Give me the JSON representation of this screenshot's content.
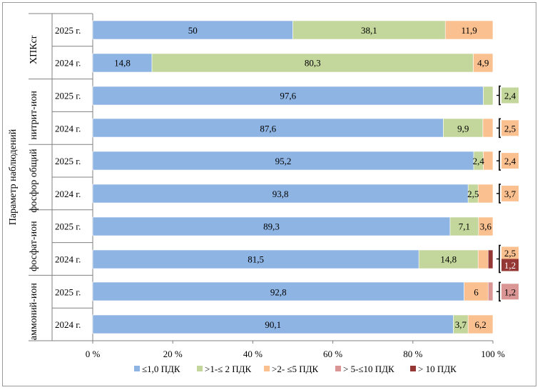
{
  "chart_data": {
    "type": "bar",
    "orientation": "horizontal",
    "stacked": true,
    "ylabel": "Параметр наблюдений",
    "xlim": [
      0,
      100
    ],
    "x_ticks": [
      "0 %",
      "20 %",
      "40 %",
      "60 %",
      "80 %",
      "100 %"
    ],
    "groups": [
      {
        "name": "ХПКcr",
        "rows": [
          {
            "year": "2025 г.",
            "values": [
              50,
              38.1,
              11.9,
              0,
              0
            ],
            "labels": [
              "50",
              "38,1",
              "11,9",
              "",
              ""
            ]
          },
          {
            "year": "2024 г.",
            "values": [
              14.8,
              80.3,
              4.9,
              0,
              0
            ],
            "labels": [
              "14,8",
              "80,3",
              "4,9",
              "",
              ""
            ]
          }
        ]
      },
      {
        "name": "нитрит-ион",
        "rows": [
          {
            "year": "2025 г.",
            "values": [
              97.6,
              2.4,
              0,
              0,
              0
            ],
            "labels": [
              "97,6",
              "",
              "",
              "",
              ""
            ],
            "callouts": [
              {
                "label": "2,4",
                "series": 1
              }
            ]
          },
          {
            "year": "2024 г.",
            "values": [
              87.6,
              9.9,
              2.5,
              0,
              0
            ],
            "labels": [
              "87,6",
              "9,9",
              "",
              "",
              ""
            ],
            "callouts": [
              {
                "label": "2,5",
                "series": 2
              }
            ]
          }
        ]
      },
      {
        "name": "фосфор общий",
        "rows": [
          {
            "year": "2025 г.",
            "values": [
              95.2,
              2.4,
              2.4,
              0,
              0
            ],
            "labels": [
              "95,2",
              "2,4",
              "",
              "",
              ""
            ],
            "callouts": [
              {
                "label": "2,4",
                "series": 2
              }
            ]
          },
          {
            "year": "2024 г.",
            "values": [
              93.8,
              2.5,
              3.7,
              0,
              0
            ],
            "labels": [
              "93,8",
              "2,5",
              "",
              "",
              ""
            ],
            "callouts": [
              {
                "label": "3,7",
                "series": 2
              }
            ]
          }
        ]
      },
      {
        "name": "фосфат-ион",
        "rows": [
          {
            "year": "2025 г.",
            "values": [
              89.3,
              7.1,
              3.6,
              0,
              0
            ],
            "labels": [
              "89,3",
              "7,1",
              "3,6",
              "",
              ""
            ]
          },
          {
            "year": "2024 г.",
            "values": [
              81.5,
              14.8,
              2.5,
              0,
              1.2
            ],
            "labels": [
              "81,5",
              "14,8",
              "",
              "",
              ""
            ],
            "callouts": [
              {
                "label": "2,5",
                "series": 2
              },
              {
                "label": "1,2",
                "series": 4
              }
            ]
          }
        ]
      },
      {
        "name": "аммоний-ион",
        "rows": [
          {
            "year": "2025 г.",
            "values": [
              92.8,
              0,
              6,
              1.2,
              0
            ],
            "labels": [
              "92,8",
              "",
              "6",
              "",
              ""
            ],
            "callouts": [
              {
                "label": "1,2",
                "series": 3
              }
            ]
          },
          {
            "year": "2024 г.",
            "values": [
              90.1,
              3.7,
              6.2,
              0,
              0
            ],
            "labels": [
              "90,1",
              "3,7",
              "6,2",
              "",
              ""
            ]
          }
        ]
      }
    ],
    "series": [
      {
        "name": "≤1,0 ПДК",
        "color": "#8eb4e3"
      },
      {
        "name": ">1-≤ 2 ПДК",
        "color": "#c3d69b"
      },
      {
        "name": ">2- ≤5 ПДК",
        "color": "#fac090"
      },
      {
        "name": "> 5-≤10 ПДК",
        "color": "#d99694"
      },
      {
        "name": "> 10 ПДК",
        "color": "#953735"
      }
    ],
    "legend_position": "bottom",
    "grid": false
  }
}
